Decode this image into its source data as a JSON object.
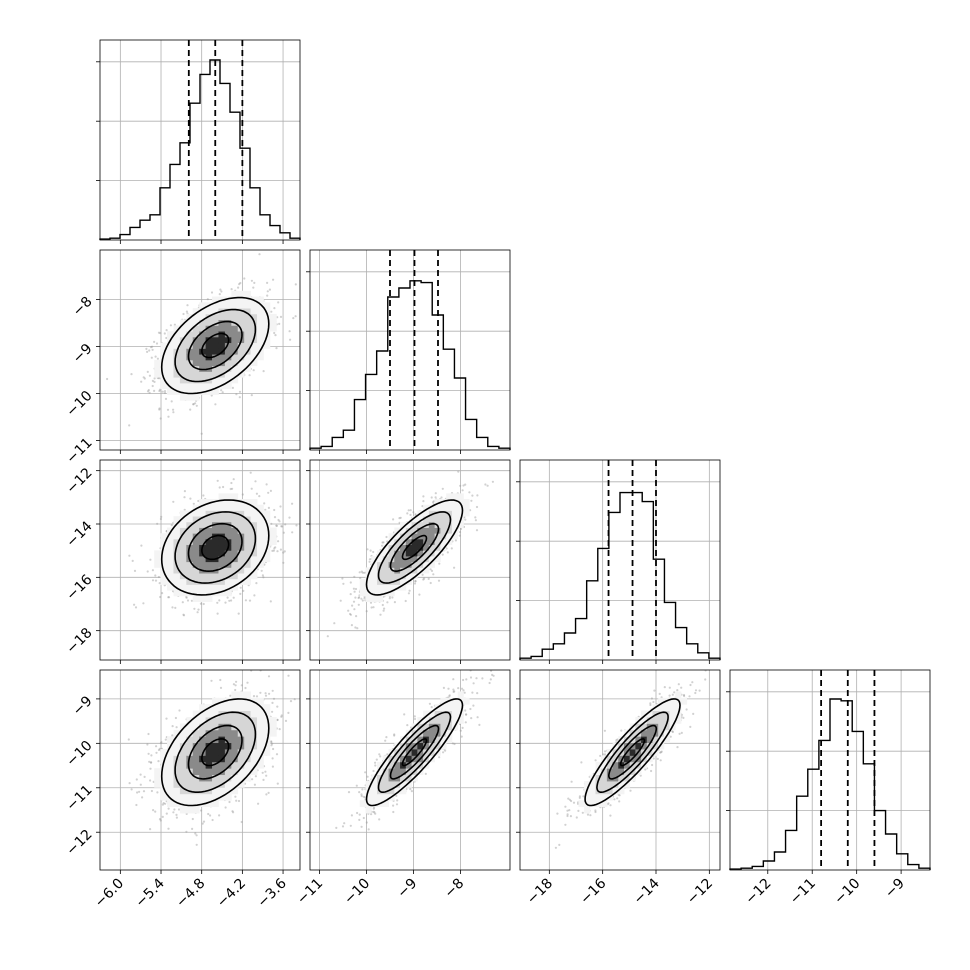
{
  "chart_data": {
    "type": "corner",
    "grid": true,
    "parameters": [
      {
        "range": [
          -6.3,
          -3.35
        ],
        "ticks": [
          -6.0,
          -5.4,
          -4.8,
          -4.2,
          -3.6
        ],
        "tick_labels": [
          "−6.0",
          "−5.4",
          "−4.8",
          "−4.2",
          "−3.6"
        ],
        "quantiles": [
          -4.99,
          -4.6,
          -4.2
        ]
      },
      {
        "range": [
          -11.2,
          -6.95
        ],
        "ticks": [
          -11,
          -10,
          -9,
          -8
        ],
        "tick_labels": [
          "−11",
          "−10",
          "−9",
          "−8"
        ],
        "quantiles": [
          -9.5,
          -8.98,
          -8.48
        ]
      },
      {
        "range": [
          -19.1,
          -11.6
        ],
        "ticks": [
          -18,
          -16,
          -14,
          -12
        ],
        "tick_labels": [
          "−18",
          "−16",
          "−14",
          "−12"
        ],
        "quantiles": [
          -15.78,
          -14.88,
          -14.0
        ]
      },
      {
        "range": [
          -12.85,
          -8.35
        ],
        "ticks": [
          -12,
          -11,
          -10,
          -9
        ],
        "tick_labels": [
          "−12",
          "−11",
          "−10",
          "−9"
        ],
        "quantiles": [
          -10.8,
          -10.2,
          -9.6
        ]
      }
    ],
    "histograms": [
      [
        0.005,
        0.01,
        0.03,
        0.07,
        0.11,
        0.14,
        0.29,
        0.42,
        0.54,
        0.76,
        0.92,
        1.0,
        0.87,
        0.71,
        0.51,
        0.29,
        0.14,
        0.08,
        0.04,
        0.01
      ],
      [
        0.01,
        0.02,
        0.07,
        0.11,
        0.28,
        0.42,
        0.55,
        0.85,
        0.9,
        0.94,
        0.93,
        0.75,
        0.56,
        0.4,
        0.17,
        0.07,
        0.02,
        0.01
      ],
      [
        0.01,
        0.02,
        0.06,
        0.09,
        0.15,
        0.23,
        0.44,
        0.62,
        0.82,
        0.93,
        0.93,
        0.88,
        0.56,
        0.32,
        0.18,
        0.09,
        0.04,
        0.01
      ],
      [
        0.005,
        0.01,
        0.02,
        0.05,
        0.1,
        0.22,
        0.41,
        0.56,
        0.72,
        0.95,
        0.94,
        0.77,
        0.59,
        0.33,
        0.2,
        0.09,
        0.03,
        0.01
      ]
    ],
    "pairs": [
      {
        "x": 0,
        "y": 1,
        "mean": [
          -4.6,
          -8.98
        ],
        "corr": 0.45
      },
      {
        "x": 0,
        "y": 2,
        "mean": [
          -4.6,
          -14.88
        ],
        "corr": 0.25
      },
      {
        "x": 1,
        "y": 2,
        "mean": [
          -8.98,
          -14.88
        ],
        "corr": 0.78
      },
      {
        "x": 0,
        "y": 3,
        "mean": [
          -4.6,
          -10.2
        ],
        "corr": 0.45
      },
      {
        "x": 1,
        "y": 3,
        "mean": [
          -8.98,
          -10.2
        ],
        "corr": 0.88
      },
      {
        "x": 2,
        "y": 3,
        "mean": [
          -14.88,
          -10.2
        ],
        "corr": 0.88
      }
    ]
  }
}
